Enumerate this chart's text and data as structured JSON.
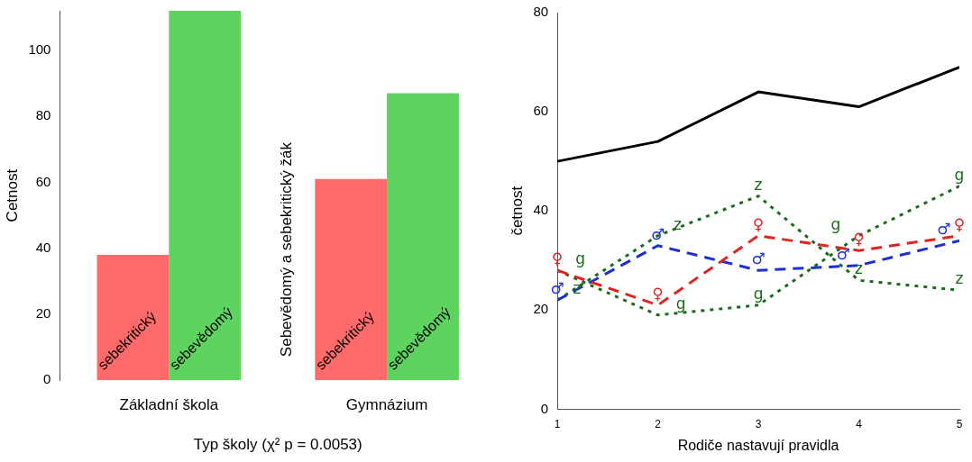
{
  "chart_data": [
    {
      "type": "bar",
      "xlabel": "Typ školy (χ² p = 0.0053)",
      "ylabel": "Cetnost",
      "categories": [
        "Základní škola",
        "Gymnázium"
      ],
      "series": [
        {
          "name": "sebekritický",
          "color": "#ff6b6b",
          "values": [
            38,
            61
          ]
        },
        {
          "name": "sebevědomý",
          "color": "#5fd35f",
          "values": [
            112,
            87
          ]
        }
      ],
      "ylim": [
        0,
        112
      ],
      "yticks": [
        0,
        20,
        40,
        60,
        80,
        100
      ],
      "grid": false,
      "legend": false,
      "annotations": [
        "Sebevědomý a sebekritický žák"
      ]
    },
    {
      "type": "line",
      "xlabel": "Rodiče nastavují pravidla",
      "ylabel": "četnost",
      "x": [
        1,
        2,
        3,
        4,
        5
      ],
      "series": [
        {
          "color": "#000000",
          "line_style": "solid",
          "values": [
            50,
            54,
            64,
            61,
            69
          ]
        },
        {
          "name": "♀",
          "color": "#e32222",
          "line_style": "dashed",
          "values": [
            28,
            21,
            35,
            32,
            35
          ]
        },
        {
          "name": "♂",
          "color": "#1c2fd4",
          "line_style": "dashed",
          "values": [
            22,
            33,
            28,
            29,
            34
          ]
        },
        {
          "name": "g",
          "color": "#1c6b1c",
          "line_style": "dotted",
          "values": [
            28,
            19,
            21,
            35,
            45
          ]
        },
        {
          "name": "z",
          "color": "#1c6b1c",
          "line_style": "dotted",
          "values": [
            22,
            35,
            43,
            26,
            24
          ]
        }
      ],
      "xlim": [
        1,
        5
      ],
      "xticks": [
        1,
        2,
        3,
        4,
        5
      ],
      "ylim": [
        0,
        80
      ],
      "yticks": [
        0,
        20,
        40,
        60,
        80
      ],
      "grid": false,
      "legend": false,
      "marker": "none"
    }
  ]
}
